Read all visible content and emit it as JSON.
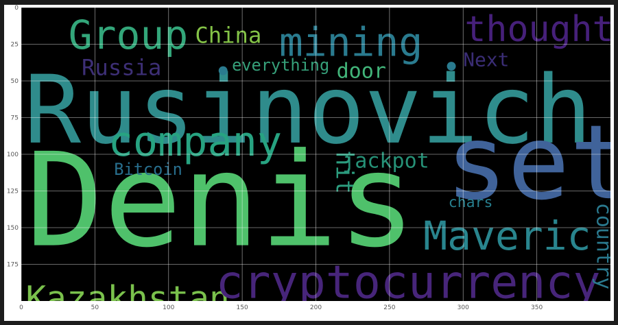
{
  "chart_data": {
    "type": "wordcloud",
    "xlim": [
      0,
      400
    ],
    "ylim": [
      200,
      0
    ],
    "x_ticks": [
      0,
      50,
      100,
      150,
      200,
      250,
      300,
      350
    ],
    "y_ticks": [
      0,
      25,
      50,
      75,
      100,
      125,
      150,
      175
    ],
    "x_tick_labels": [
      "0",
      "50",
      "100",
      "150",
      "200",
      "250",
      "300",
      "350"
    ],
    "y_tick_labels": [
      "0",
      "25",
      "50",
      "75",
      "100",
      "125",
      "150",
      "175"
    ],
    "grid": true,
    "background": "#000000",
    "words": [
      {
        "text": "Rusinovich",
        "x": 2,
        "y": 92,
        "size": 64,
        "color": "#2f8c8c"
      },
      {
        "text": "Denis",
        "x": 3,
        "y": 162,
        "size": 88,
        "color": "#4fc16b"
      },
      {
        "text": "set",
        "x": 288,
        "y": 130,
        "size": 70,
        "color": "#40639a"
      },
      {
        "text": "Group",
        "x": 32,
        "y": 28,
        "size": 27,
        "color": "#33a67a"
      },
      {
        "text": "China",
        "x": 118,
        "y": 24,
        "size": 15,
        "color": "#84c347"
      },
      {
        "text": "mining",
        "x": 175,
        "y": 33,
        "size": 27,
        "color": "#2a7b8f"
      },
      {
        "text": "thought",
        "x": 301,
        "y": 23,
        "size": 24,
        "color": "#46207a"
      },
      {
        "text": "Russia",
        "x": 41,
        "y": 46,
        "size": 15,
        "color": "#3d2f76"
      },
      {
        "text": "Next",
        "x": 300,
        "y": 40,
        "size": 13,
        "color": "#3a2d75"
      },
      {
        "text": "everything",
        "x": 143,
        "y": 43,
        "size": 11,
        "color": "#36a07a"
      },
      {
        "text": "door",
        "x": 214,
        "y": 48,
        "size": 14,
        "color": "#42b57a"
      },
      {
        "text": "company",
        "x": 59,
        "y": 101,
        "size": 28,
        "color": "#27a381"
      },
      {
        "text": "Bitcoin",
        "x": 63,
        "y": 114,
        "size": 11,
        "color": "#286f8e"
      },
      {
        "text": "jackpot",
        "x": 218,
        "y": 109,
        "size": 14,
        "color": "#269177"
      },
      {
        "text": "Maveric",
        "x": 273,
        "y": 165,
        "size": 27,
        "color": "#29858e"
      },
      {
        "text": "chars",
        "x": 290,
        "y": 136,
        "size": 10,
        "color": "#277f8e"
      },
      {
        "text": "Kazakhstan",
        "x": 3,
        "y": 206,
        "size": 23,
        "color": "#7ac14c"
      },
      {
        "text": "cryptocurrency",
        "x": 132,
        "y": 198,
        "size": 31,
        "color": "#47257a"
      }
    ],
    "vertical_words": [
      {
        "text": "hit",
        "x": 214,
        "y": 98,
        "size": 16,
        "color": "#2c9c7e"
      },
      {
        "text": "country",
        "x": 391,
        "y": 133,
        "size": 14,
        "color": "#2a798e"
      }
    ],
    "dots": [
      {
        "x": 137,
        "y": 43,
        "color": "#2a7b8f"
      },
      {
        "x": 292,
        "y": 40,
        "color": "#2a7b8f"
      },
      {
        "x": 189,
        "y": 101,
        "color": "#4fc16b"
      }
    ]
  }
}
